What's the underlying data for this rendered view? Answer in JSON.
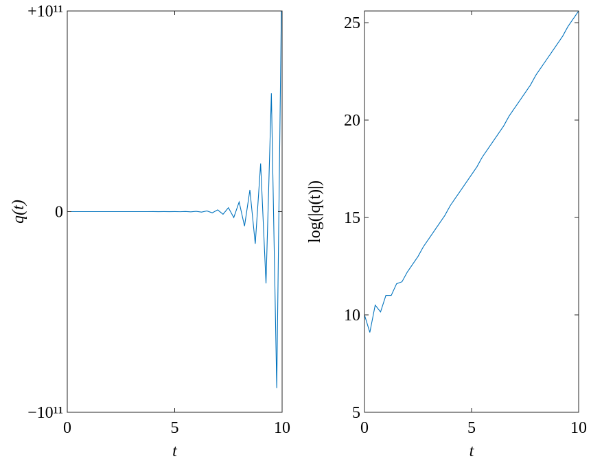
{
  "chart_data": [
    {
      "type": "line",
      "color": "#0072bd",
      "xlabel": "t",
      "ylabel": "q(t)",
      "xlim": [
        0,
        10
      ],
      "xticks": [
        0,
        5,
        10
      ],
      "ylim": [
        -100000000000,
        100000000000
      ],
      "yticks": [
        {
          "value": -100000000000,
          "label": "−10¹¹"
        },
        0,
        {
          "value": 100000000000,
          "label": "+10¹¹"
        }
      ],
      "x": [
        0,
        0.25,
        0.5,
        0.75,
        1,
        1.25,
        1.5,
        1.75,
        2,
        2.25,
        2.5,
        2.75,
        3,
        3.25,
        3.5,
        3.75,
        4,
        4.25,
        4.5,
        4.75,
        5,
        5.25,
        5.5,
        5.75,
        6,
        6.25,
        6.5,
        6.75,
        7,
        7.25,
        7.5,
        7.75,
        8,
        8.25,
        8.5,
        8.75,
        9,
        9.25,
        9.5,
        9.75,
        10
      ],
      "values": [
        22026,
        -8955,
        36316,
        -25591,
        59874,
        -59874,
        109098,
        -120572,
        198789,
        -296559,
        442413,
        -729416,
        1088161,
        -1623346,
        2421748,
        -3612823,
        5956538,
        -8886111,
        13256519,
        -19776403,
        29502925,
        -44013194,
        72565098,
        -108254987,
        161497464,
        -240925905,
        359420000,
        -592582000,
        884050000,
        -1318816000,
        1967442000,
        -2935069000,
        4839138000,
        -7219128000,
        10769760000,
        -16066670000,
        23968750000,
        -35757110000,
        58953790000,
        -87949200000,
        131207000000
      ]
    },
    {
      "type": "line",
      "color": "#0072bd",
      "xlabel": "t",
      "ylabel": "log(|q(t)|)",
      "xlim": [
        0,
        10
      ],
      "xticks": [
        0,
        5,
        10
      ],
      "ylim": [
        5,
        25.6
      ],
      "yticks": [
        5,
        10,
        15,
        20,
        25
      ],
      "x": [
        0,
        0.25,
        0.5,
        0.75,
        1,
        1.25,
        1.5,
        1.75,
        2,
        2.25,
        2.5,
        2.75,
        3,
        3.25,
        3.5,
        3.75,
        4,
        4.25,
        4.5,
        4.75,
        5,
        5.25,
        5.5,
        5.75,
        6,
        6.25,
        6.5,
        6.75,
        7,
        7.25,
        7.5,
        7.75,
        8,
        8.25,
        8.5,
        8.75,
        9,
        9.25,
        9.5,
        9.75,
        10
      ],
      "values": [
        10.0,
        9.1,
        10.5,
        10.15,
        11.0,
        11.0,
        11.6,
        11.7,
        12.2,
        12.6,
        13.0,
        13.5,
        13.9,
        14.3,
        14.7,
        15.1,
        15.6,
        16.0,
        16.4,
        16.8,
        17.2,
        17.6,
        18.1,
        18.5,
        18.9,
        19.3,
        19.7,
        20.2,
        20.6,
        21.0,
        21.4,
        21.8,
        22.3,
        22.7,
        23.1,
        23.5,
        23.9,
        24.3,
        24.8,
        25.2,
        25.6
      ]
    }
  ]
}
